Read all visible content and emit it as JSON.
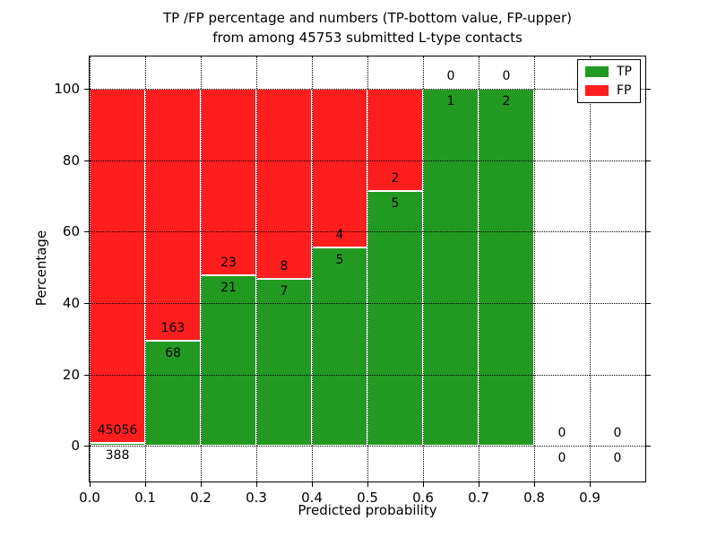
{
  "title": {
    "line1": "TP /FP percentage and numbers (TP-bottom value, FP-upper)",
    "line2": "from among 45753 submitted L-type contacts"
  },
  "chart_data": {
    "type": "bar",
    "stacked": true,
    "normalized_to_percent": true,
    "title": "TP /FP percentage and numbers (TP-bottom value, FP-upper) from among 45753 submitted L-type contacts",
    "xlabel": "Predicted probability",
    "ylabel": "Percentage",
    "total_contacts": 45753,
    "bin_edges": [
      0.0,
      0.1,
      0.2,
      0.3,
      0.4,
      0.5,
      0.6,
      0.7,
      0.8,
      0.9,
      1.0
    ],
    "categories": [
      "0.0-0.1",
      "0.1-0.2",
      "0.2-0.3",
      "0.3-0.4",
      "0.4-0.5",
      "0.5-0.6",
      "0.6-0.7",
      "0.7-0.8",
      "0.8-0.9",
      "0.9-1.0"
    ],
    "series": [
      {
        "name": "TP",
        "color": "#229a22",
        "values": [
          388,
          68,
          21,
          7,
          5,
          5,
          1,
          2,
          0,
          0
        ]
      },
      {
        "name": "FP",
        "color": "#ff1e1e",
        "values": [
          45056,
          163,
          23,
          8,
          4,
          2,
          0,
          0,
          0,
          0
        ]
      }
    ],
    "legend": [
      {
        "label": "TP",
        "color": "#229a22"
      },
      {
        "label": "FP",
        "color": "#ff1e1e"
      }
    ],
    "legend_position": "upper right",
    "grid": true,
    "grid_style": "dotted",
    "xlim": [
      0.0,
      1.0
    ],
    "ylim": [
      -10,
      109
    ],
    "xtick_labels": [
      "0.0",
      "0.1",
      "0.2",
      "0.3",
      "0.4",
      "0.5",
      "0.6",
      "0.7",
      "0.8",
      "0.9"
    ],
    "ytick_values": [
      0,
      20,
      40,
      60,
      80,
      100
    ]
  }
}
